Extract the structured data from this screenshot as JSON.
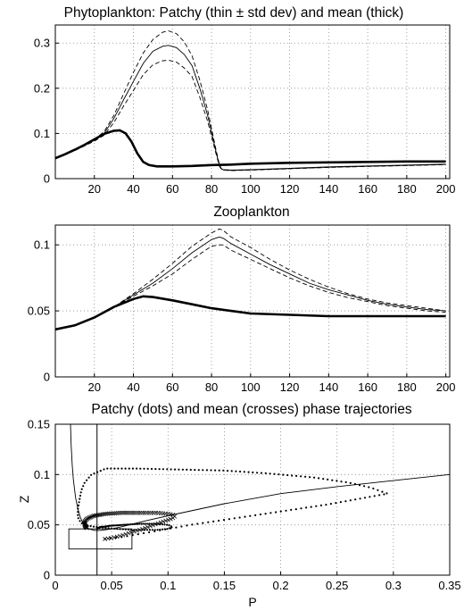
{
  "chart_data": [
    {
      "type": "line",
      "title": "Phytoplankton: Patchy (thin  ± std dev) and mean (thick)",
      "xlim": [
        0,
        202
      ],
      "ylim": [
        0,
        0.34
      ],
      "xticks": [
        "20",
        "40",
        "60",
        "80",
        "100",
        "120",
        "140",
        "160",
        "180",
        "200"
      ],
      "yticks": [
        "0",
        "0.1",
        "0.2",
        "0.3"
      ],
      "grid": true,
      "series": [
        {
          "style": "thin",
          "x": [
            0,
            10,
            20,
            25,
            30,
            35,
            40,
            45,
            50,
            55,
            58,
            62,
            66,
            70,
            74,
            78,
            82,
            84,
            85,
            86,
            90,
            100,
            120,
            140,
            160,
            180,
            200
          ],
          "y": [
            0.044,
            0.063,
            0.085,
            0.1,
            0.133,
            0.175,
            0.215,
            0.255,
            0.282,
            0.293,
            0.295,
            0.29,
            0.275,
            0.25,
            0.2,
            0.14,
            0.065,
            0.03,
            0.022,
            0.02,
            0.019,
            0.02,
            0.023,
            0.026,
            0.028,
            0.03,
            0.032
          ]
        },
        {
          "style": "thin-dashed",
          "x": [
            0,
            10,
            20,
            25,
            30,
            35,
            40,
            45,
            50,
            55,
            58,
            62,
            66,
            70,
            74,
            78,
            82,
            84,
            85,
            86,
            90,
            100,
            120,
            140,
            160,
            180,
            200
          ],
          "y": [
            0.044,
            0.063,
            0.087,
            0.104,
            0.14,
            0.188,
            0.235,
            0.278,
            0.308,
            0.324,
            0.327,
            0.321,
            0.303,
            0.272,
            0.218,
            0.152,
            0.07,
            0.032,
            0.022,
            0.019,
            0.018,
            0.019,
            0.022,
            0.025,
            0.027,
            0.029,
            0.031
          ]
        },
        {
          "style": "thin-dashed",
          "x": [
            0,
            10,
            20,
            25,
            30,
            35,
            40,
            45,
            50,
            55,
            58,
            62,
            66,
            70,
            74,
            78,
            82,
            84,
            85,
            86,
            90,
            100,
            120,
            140,
            160,
            180,
            200
          ],
          "y": [
            0.044,
            0.062,
            0.083,
            0.096,
            0.124,
            0.161,
            0.195,
            0.23,
            0.252,
            0.261,
            0.262,
            0.258,
            0.245,
            0.226,
            0.18,
            0.127,
            0.06,
            0.028,
            0.021,
            0.019,
            0.018,
            0.019,
            0.022,
            0.025,
            0.027,
            0.029,
            0.031
          ]
        },
        {
          "style": "thick",
          "x": [
            0,
            5,
            10,
            15,
            20,
            25,
            30,
            33,
            36,
            39,
            42,
            45,
            48,
            52,
            56,
            60,
            70,
            80,
            90,
            100,
            120,
            140,
            160,
            180,
            200
          ],
          "y": [
            0.045,
            0.054,
            0.064,
            0.075,
            0.087,
            0.099,
            0.106,
            0.107,
            0.1,
            0.082,
            0.056,
            0.037,
            0.03,
            0.027,
            0.027,
            0.027,
            0.028,
            0.03,
            0.031,
            0.033,
            0.035,
            0.036,
            0.037,
            0.038,
            0.038
          ]
        }
      ]
    },
    {
      "type": "line",
      "title": "Zooplankton",
      "xlim": [
        0,
        202
      ],
      "ylim": [
        0,
        0.115
      ],
      "xticks": [
        "20",
        "40",
        "60",
        "80",
        "100",
        "120",
        "140",
        "160",
        "180",
        "200"
      ],
      "yticks": [
        "0",
        "0.05",
        "0.1"
      ],
      "grid": true,
      "series": [
        {
          "style": "thin",
          "x": [
            0,
            10,
            20,
            30,
            40,
            50,
            60,
            70,
            80,
            84,
            86,
            90,
            100,
            110,
            120,
            130,
            140,
            150,
            160,
            170,
            180,
            190,
            200
          ],
          "y": [
            0.036,
            0.039,
            0.045,
            0.053,
            0.062,
            0.071,
            0.082,
            0.094,
            0.104,
            0.106,
            0.105,
            0.101,
            0.093,
            0.085,
            0.078,
            0.071,
            0.066,
            0.062,
            0.058,
            0.055,
            0.053,
            0.051,
            0.05
          ]
        },
        {
          "style": "thin-dashed",
          "x": [
            0,
            10,
            20,
            30,
            40,
            50,
            60,
            70,
            80,
            84,
            86,
            90,
            100,
            110,
            120,
            130,
            140,
            150,
            160,
            170,
            180,
            190,
            200
          ],
          "y": [
            0.036,
            0.039,
            0.045,
            0.053,
            0.063,
            0.074,
            0.086,
            0.099,
            0.109,
            0.112,
            0.111,
            0.106,
            0.098,
            0.089,
            0.081,
            0.074,
            0.068,
            0.063,
            0.059,
            0.056,
            0.054,
            0.052,
            0.05
          ]
        },
        {
          "style": "thin-dashed",
          "x": [
            0,
            10,
            20,
            30,
            40,
            50,
            60,
            70,
            80,
            84,
            86,
            90,
            100,
            110,
            120,
            130,
            140,
            150,
            160,
            170,
            180,
            190,
            200
          ],
          "y": [
            0.036,
            0.039,
            0.045,
            0.053,
            0.061,
            0.069,
            0.078,
            0.089,
            0.099,
            0.1,
            0.1,
            0.096,
            0.089,
            0.082,
            0.075,
            0.069,
            0.064,
            0.06,
            0.057,
            0.054,
            0.052,
            0.05,
            0.049
          ]
        },
        {
          "style": "thick",
          "x": [
            0,
            10,
            20,
            30,
            40,
            45,
            50,
            60,
            70,
            80,
            90,
            100,
            120,
            140,
            160,
            180,
            200
          ],
          "y": [
            0.036,
            0.039,
            0.045,
            0.053,
            0.059,
            0.061,
            0.0605,
            0.058,
            0.055,
            0.052,
            0.05,
            0.048,
            0.047,
            0.046,
            0.046,
            0.046,
            0.046
          ]
        }
      ]
    },
    {
      "type": "scatter",
      "title": "Patchy (dots) and mean (crosses) phase trajectories",
      "xlabel": "P",
      "ylabel": "Z",
      "xlim": [
        0,
        0.35
      ],
      "ylim": [
        0,
        0.15
      ],
      "xticks": [
        "0",
        "0.05",
        "0.1",
        "0.15",
        "0.2",
        "0.25",
        "0.3",
        "0.35"
      ],
      "yticks": [
        "0",
        "0.05",
        "0.1",
        "0.15"
      ],
      "grid": true,
      "vline_x": 0.037,
      "box": {
        "x0": 0.012,
        "x1": 0.068,
        "y0": 0.026,
        "y1": 0.046
      },
      "nullcline": {
        "x": [
          0.0135,
          0.014,
          0.015,
          0.016,
          0.018,
          0.02,
          0.022,
          0.024,
          0.026,
          0.03,
          0.035,
          0.04,
          0.05,
          0.06,
          0.08,
          0.1,
          0.15,
          0.2,
          0.25,
          0.3,
          0.35
        ],
        "y": [
          0.15,
          0.13,
          0.11,
          0.095,
          0.077,
          0.066,
          0.058,
          0.053,
          0.049,
          0.046,
          0.0445,
          0.0445,
          0.046,
          0.0485,
          0.054,
          0.059,
          0.071,
          0.081,
          0.088,
          0.094,
          0.1
        ]
      },
      "patchy_path": {
        "x": [
          0.044,
          0.05,
          0.06,
          0.07,
          0.085,
          0.1,
          0.12,
          0.15,
          0.18,
          0.21,
          0.24,
          0.26,
          0.28,
          0.29,
          0.295,
          0.29,
          0.28,
          0.26,
          0.23,
          0.19,
          0.15,
          0.11,
          0.07,
          0.045,
          0.032,
          0.026,
          0.023,
          0.022,
          0.021,
          0.02,
          0.02,
          0.02,
          0.021,
          0.023,
          0.026,
          0.03,
          0.036,
          0.045,
          0.055,
          0.07,
          0.09,
          0.1,
          0.104,
          0.1,
          0.09,
          0.075,
          0.06,
          0.048,
          0.042,
          0.04,
          0.039,
          0.038,
          0.037
        ],
        "y": [
          0.036,
          0.037,
          0.038,
          0.04,
          0.043,
          0.046,
          0.05,
          0.055,
          0.06,
          0.065,
          0.07,
          0.074,
          0.078,
          0.08,
          0.081,
          0.083,
          0.087,
          0.092,
          0.097,
          0.101,
          0.104,
          0.105,
          0.106,
          0.106,
          0.1,
          0.092,
          0.084,
          0.078,
          0.072,
          0.066,
          0.062,
          0.058,
          0.055,
          0.052,
          0.05,
          0.049,
          0.048,
          0.047,
          0.046,
          0.045,
          0.045,
          0.046,
          0.048,
          0.05,
          0.051,
          0.051,
          0.05,
          0.049,
          0.048,
          0.048,
          0.047,
          0.047,
          0.046
        ],
        "count": 230
      },
      "mean_path": {
        "x": [
          0.044,
          0.05,
          0.058,
          0.066,
          0.075,
          0.085,
          0.095,
          0.103,
          0.106,
          0.105,
          0.1,
          0.09,
          0.075,
          0.06,
          0.045,
          0.034,
          0.028,
          0.026,
          0.026,
          0.027,
          0.028
        ],
        "y": [
          0.036,
          0.037,
          0.039,
          0.042,
          0.045,
          0.049,
          0.053,
          0.056,
          0.058,
          0.06,
          0.061,
          0.062,
          0.062,
          0.062,
          0.061,
          0.059,
          0.056,
          0.053,
          0.05,
          0.048,
          0.047
        ],
        "count": 90
      }
    }
  ]
}
